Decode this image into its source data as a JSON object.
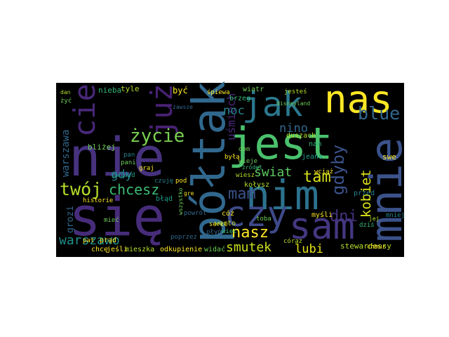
{
  "wordcloud": {
    "words": [
      "nie",
      "się",
      "jest",
      "półtak",
      "jak",
      "nas",
      "już",
      "nim",
      "czy",
      "sam",
      "mnie",
      "cie",
      "życie",
      "twój",
      "chcesz",
      "warszawo",
      "warszawa",
      "mam",
      "tam",
      "świat",
      "nasz",
      "smutek",
      "lubi",
      "dni",
      "kobiet",
      "gdyby",
      "blue",
      "nino",
      "uśmiech",
      "noc",
      "gdy",
      "bliżej",
      "grozi",
      "stewardessy",
      "nieba",
      "tyle",
      "być",
      "wiatr",
      "jesteś",
      "brzeg",
      "dom",
      "duszach",
      "nam",
      "swe",
      "jeans",
      "przed",
      "dziś",
      "myśli",
      "cóż",
      "płyń",
      "kołysz",
      "warto",
      "mieszka",
      "odkupienie",
      "widać",
      "chcę",
      "jeśli",
      "błąd",
      "prąd",
      "pat",
      "historie",
      "pani",
      "graj",
      "czuję",
      "pod",
      "gwiazd",
      "serce",
      "więc",
      "wieje",
      "poprzez",
      "chmur",
      "mieć",
      "żyć",
      "dan",
      "pan",
      "powrót",
      "zawsze",
      "wszystko",
      "toba",
      "córaz",
      "gre",
      "mniej",
      "wciąż",
      "disneyland",
      "śpiewa",
      "żródeł",
      "wiesz",
      "byłą",
      "jej"
    ]
  }
}
